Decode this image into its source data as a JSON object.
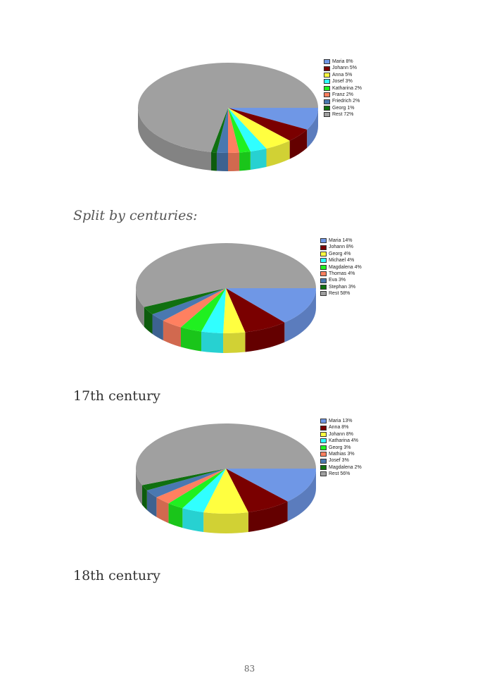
{
  "headings": {
    "split": "Split by centuries:",
    "c17": "17th century",
    "c18": "18th century"
  },
  "page_number": "83",
  "chart_data": [
    {
      "type": "pie",
      "style": "3d",
      "legend_position": "right",
      "labels": [
        "Maria 8%",
        "Johann 5%",
        "Anna 5%",
        "Josef 3%",
        "Katharina 2%",
        "Franz 2%",
        "Friedrich 2%",
        "Georg 1%",
        "Rest 72%"
      ],
      "categories": [
        "Maria",
        "Johann",
        "Anna",
        "Josef",
        "Katharina",
        "Franz",
        "Friedrich",
        "Georg",
        "Rest"
      ],
      "values": [
        8,
        5,
        5,
        3,
        2,
        2,
        2,
        1,
        72
      ],
      "colors": [
        "#6f97e6",
        "#7a0000",
        "#ffff40",
        "#30ffff",
        "#20f020",
        "#ff8060",
        "#4a78b0",
        "#107010",
        "#a0a0a0"
      ]
    },
    {
      "type": "pie",
      "style": "3d",
      "legend_position": "right",
      "labels": [
        "Maria 14%",
        "Johann 8%",
        "Georg 4%",
        "Michael 4%",
        "Magdalena 4%",
        "Thomas 4%",
        "Eva 3%",
        "Stephan 3%",
        "Rest 58%"
      ],
      "categories": [
        "Maria",
        "Johann",
        "Georg",
        "Michael",
        "Magdalena",
        "Thomas",
        "Eva",
        "Stephan",
        "Rest"
      ],
      "values": [
        14,
        8,
        4,
        4,
        4,
        4,
        3,
        3,
        58
      ],
      "colors": [
        "#6f97e6",
        "#7a0000",
        "#ffff40",
        "#30ffff",
        "#20f020",
        "#ff8060",
        "#4a78b0",
        "#107010",
        "#a0a0a0"
      ]
    },
    {
      "type": "pie",
      "style": "3d",
      "legend_position": "right",
      "labels": [
        "Maria 13%",
        "Anna 8%",
        "Johann 8%",
        "Katharina 4%",
        "Georg 3%",
        "Mathias 3%",
        "Josef 3%",
        "Magdalena 2%",
        "Rest 56%"
      ],
      "categories": [
        "Maria",
        "Anna",
        "Johann",
        "Katharina",
        "Georg",
        "Mathias",
        "Josef",
        "Magdalena",
        "Rest"
      ],
      "values": [
        13,
        8,
        8,
        4,
        3,
        3,
        3,
        2,
        56
      ],
      "colors": [
        "#6f97e6",
        "#7a0000",
        "#ffff40",
        "#30ffff",
        "#20f020",
        "#ff8060",
        "#4a78b0",
        "#107010",
        "#a0a0a0"
      ]
    }
  ]
}
